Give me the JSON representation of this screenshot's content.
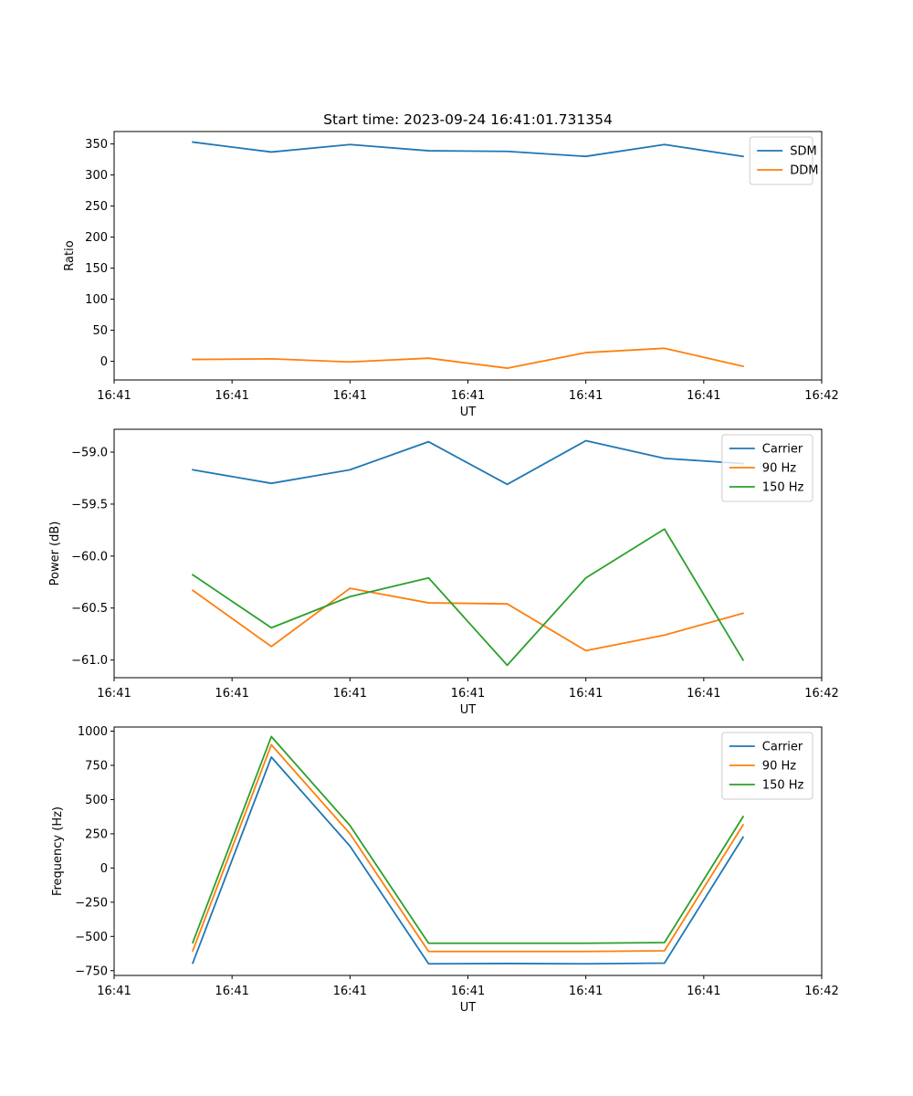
{
  "chart_data": [
    {
      "type": "line",
      "title": "Start time: 2023-09-24 16:41:01.731354",
      "xlabel": "UT",
      "ylabel": "Ratio",
      "x": [
        1,
        2,
        3,
        4,
        5,
        6,
        7,
        8
      ],
      "xlim": [
        0,
        9
      ],
      "ylim": [
        -30,
        370
      ],
      "yticks": [
        0,
        50,
        100,
        150,
        200,
        250,
        300,
        350
      ],
      "ytick_labels": [
        "0",
        "50",
        "100",
        "150",
        "200",
        "250",
        "300",
        "350"
      ],
      "xticks": [
        0,
        1.5,
        3,
        4.5,
        6,
        7.5,
        9
      ],
      "xtick_labels": [
        "16:41",
        "16:41",
        "16:41",
        "16:41",
        "16:41",
        "16:41",
        "16:42"
      ],
      "legend": "upper right",
      "series": [
        {
          "name": "SDM",
          "color": "#1f77b4",
          "values": [
            353,
            337,
            349,
            339,
            338,
            330,
            349,
            330
          ]
        },
        {
          "name": "DDM",
          "color": "#ff7f0e",
          "values": [
            3,
            4,
            -1,
            5,
            -11,
            14,
            21,
            -8
          ]
        }
      ]
    },
    {
      "type": "line",
      "title": "",
      "xlabel": "UT",
      "ylabel": "Power (dB)",
      "x": [
        1,
        2,
        3,
        4,
        5,
        6,
        7,
        8
      ],
      "xlim": [
        0,
        9
      ],
      "ylim": [
        -61.17,
        -58.78
      ],
      "yticks": [
        -61.0,
        -60.5,
        -60.0,
        -59.5,
        -59.0
      ],
      "ytick_labels": [
        "−61.0",
        "−60.5",
        "−60.0",
        "−59.5",
        "−59.0"
      ],
      "xticks": [
        0,
        1.5,
        3,
        4.5,
        6,
        7.5,
        9
      ],
      "xtick_labels": [
        "16:41",
        "16:41",
        "16:41",
        "16:41",
        "16:41",
        "16:41",
        "16:42"
      ],
      "legend": "upper right",
      "series": [
        {
          "name": "Carrier",
          "color": "#1f77b4",
          "values": [
            -59.17,
            -59.3,
            -59.17,
            -58.9,
            -59.31,
            -58.89,
            -59.06,
            -59.11
          ]
        },
        {
          "name": "90 Hz",
          "color": "#ff7f0e",
          "values": [
            -60.33,
            -60.87,
            -60.31,
            -60.45,
            -60.46,
            -60.91,
            -60.76,
            -60.55
          ]
        },
        {
          "name": "150 Hz",
          "color": "#2ca02c",
          "values": [
            -60.18,
            -60.69,
            -60.39,
            -60.21,
            -61.05,
            -60.21,
            -59.74,
            -61.0
          ]
        }
      ]
    },
    {
      "type": "line",
      "title": "",
      "xlabel": "UT",
      "ylabel": "Frequency (Hz)",
      "x": [
        1,
        2,
        3,
        4,
        5,
        6,
        7,
        8
      ],
      "xlim": [
        0,
        9
      ],
      "ylim": [
        -785,
        1030
      ],
      "yticks": [
        -750,
        -500,
        -250,
        0,
        250,
        500,
        750,
        1000
      ],
      "ytick_labels": [
        "−750",
        "−500",
        "−250",
        "0",
        "250",
        "500",
        "750",
        "1000"
      ],
      "xticks": [
        0,
        1.5,
        3,
        4.5,
        6,
        7.5,
        9
      ],
      "xtick_labels": [
        "16:41",
        "16:41",
        "16:41",
        "16:41",
        "16:41",
        "16:41",
        "16:42"
      ],
      "legend": "upper right",
      "series": [
        {
          "name": "Carrier",
          "color": "#1f77b4",
          "values": [
            -695,
            810,
            160,
            -700,
            -698,
            -700,
            -695,
            225
          ]
        },
        {
          "name": "90 Hz",
          "color": "#ff7f0e",
          "values": [
            -605,
            900,
            250,
            -610,
            -610,
            -610,
            -605,
            315
          ]
        },
        {
          "name": "150 Hz",
          "color": "#2ca02c",
          "values": [
            -545,
            960,
            310,
            -550,
            -550,
            -550,
            -545,
            375
          ]
        }
      ]
    }
  ]
}
